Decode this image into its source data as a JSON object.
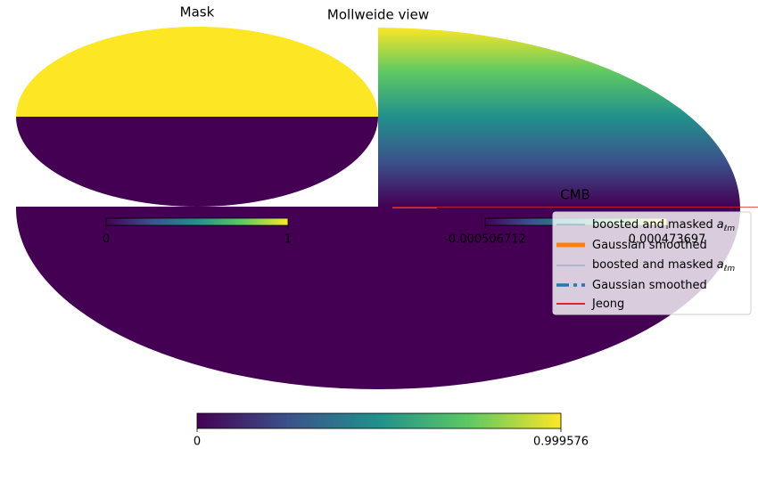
{
  "panels": [
    {
      "title": "Mask",
      "colorbar_ticks": [
        0,
        1
      ]
    },
    {
      "title": "Mollweide view",
      "colorbar_ticks": [
        0,
        0.999576
      ]
    },
    {
      "title": "CMB",
      "colorbar_ticks": [
        -0.000506712,
        0.000473697
      ]
    }
  ],
  "legend": [
    {
      "text": "boosted and masked",
      "symbol": "a",
      "subscript": "ℓm"
    },
    {
      "text": "Gaussian smoothed"
    },
    {
      "text": "boosted and masked",
      "symbol": "a",
      "subscript": "ℓm"
    },
    {
      "text": "Gaussian smoothed"
    },
    {
      "text": "Jeong"
    }
  ]
}
